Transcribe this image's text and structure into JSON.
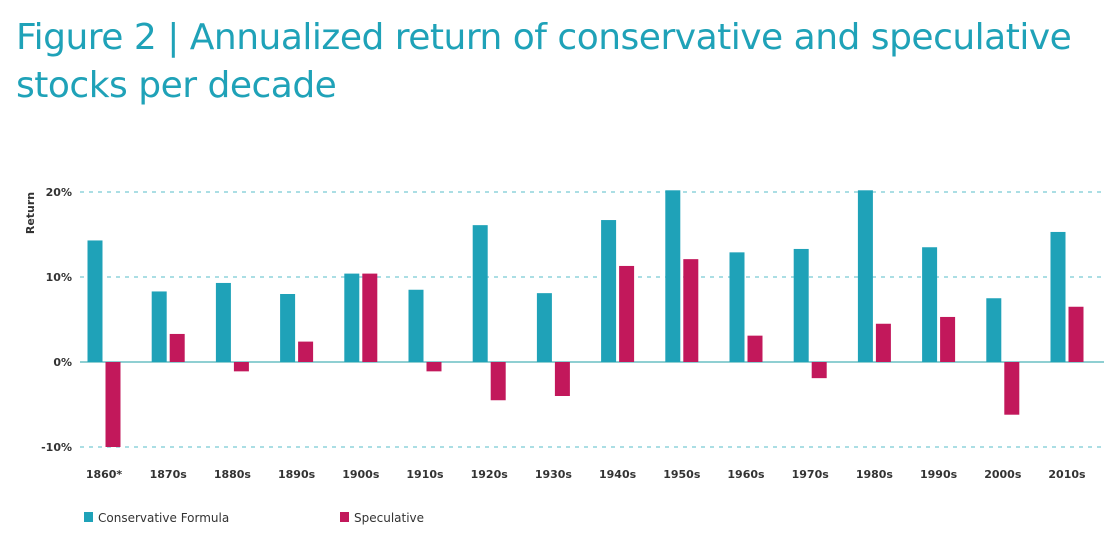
{
  "chart_data": {
    "type": "bar",
    "title": "Figure 2 | Annualized return of conservative and speculative stocks per decade",
    "xlabel": "",
    "ylabel": "Return",
    "ylim": [
      -10,
      20
    ],
    "yticks": [
      20,
      10,
      0,
      -10
    ],
    "ytick_labels": [
      "20%",
      "10%",
      "0%",
      "-10%"
    ],
    "grid": true,
    "legend_position": "bottom-left",
    "categories": [
      "1860*",
      "1870s",
      "1880s",
      "1890s",
      "1900s",
      "1910s",
      "1920s",
      "1930s",
      "1940s",
      "1950s",
      "1960s",
      "1970s",
      "1980s",
      "1990s",
      "2000s",
      "2010s"
    ],
    "series": [
      {
        "name": "Conservative Formula",
        "color": "#1fa2b8",
        "values": [
          14.3,
          8.3,
          9.3,
          8.0,
          10.4,
          8.5,
          16.1,
          8.1,
          16.7,
          20.2,
          12.9,
          13.3,
          20.2,
          13.5,
          7.5,
          15.3
        ]
      },
      {
        "name": "Speculative",
        "color": "#c2185b",
        "values": [
          -10.0,
          3.3,
          -1.1,
          2.4,
          10.4,
          -1.1,
          -4.5,
          -4.0,
          11.3,
          12.1,
          3.1,
          -1.9,
          4.5,
          5.3,
          -6.2,
          6.5
        ]
      }
    ]
  }
}
